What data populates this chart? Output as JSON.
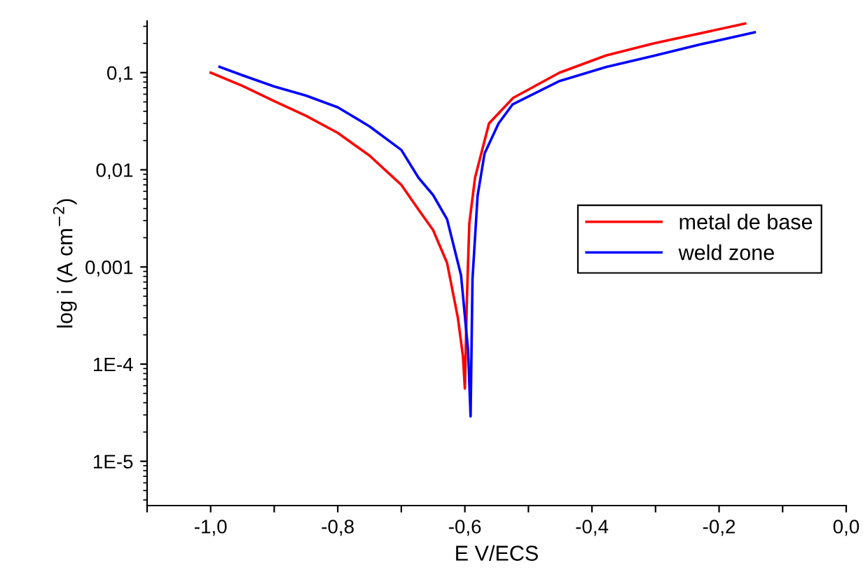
{
  "chart_data": {
    "type": "line",
    "xlabel": "E V/ECS",
    "ylabel": "log i (A cm$^{−2}$)",
    "log": "y",
    "grid": false,
    "legend": "right",
    "line_style": "solid",
    "marker": "none",
    "xlim": [
      -1.1,
      0.0
    ],
    "xticks": [
      {
        "value": -1.1,
        "label": null
      },
      {
        "value": -1.0,
        "label": "-1,0"
      },
      {
        "value": -0.9,
        "label": null
      },
      {
        "value": -0.8,
        "label": "-0,8"
      },
      {
        "value": -0.7,
        "label": null
      },
      {
        "value": -0.6,
        "label": "-0,6"
      },
      {
        "value": -0.5,
        "label": null
      },
      {
        "value": -0.4,
        "label": "-0,4"
      },
      {
        "value": -0.3,
        "label": null
      },
      {
        "value": -0.2,
        "label": "-0,2"
      },
      {
        "value": -0.1,
        "label": null
      },
      {
        "value": 0.0,
        "label": "0,0"
      }
    ],
    "ylim": [
      3.5e-06,
      0.34
    ],
    "yticks": [
      {
        "value": 1e-05,
        "label": "1E-5"
      },
      {
        "value": 0.0001,
        "label": "1E-4"
      },
      {
        "value": 0.001,
        "label": "0,001"
      },
      {
        "value": 0.01,
        "label": "0,01"
      },
      {
        "value": 0.1,
        "label": "0,1"
      }
    ],
    "series": [
      {
        "name": "metal de base",
        "color": "#ff0000",
        "x": [
          -1.0,
          -0.95,
          -0.9,
          -0.85,
          -0.8,
          -0.75,
          -0.7,
          -0.673,
          -0.65,
          -0.628,
          -0.611,
          -0.603,
          -0.6,
          -0.597,
          -0.593,
          -0.584,
          -0.562,
          -0.524,
          -0.451,
          -0.378,
          -0.303,
          -0.159
        ],
        "values": [
          0.1,
          0.073,
          0.051,
          0.036,
          0.024,
          0.014,
          0.007,
          0.0039,
          0.0024,
          0.0011,
          0.0003,
          0.00012,
          5.6e-05,
          0.00042,
          0.0028,
          0.0083,
          0.03,
          0.055,
          0.1,
          0.15,
          0.2,
          0.32
        ]
      },
      {
        "name": "weld zone",
        "color": "#0000ff",
        "x": [
          -0.986,
          -0.95,
          -0.9,
          -0.85,
          -0.8,
          -0.75,
          -0.7,
          -0.673,
          -0.65,
          -0.628,
          -0.606,
          -0.595,
          -0.591,
          -0.588,
          -0.58,
          -0.569,
          -0.547,
          -0.525,
          -0.451,
          -0.378,
          -0.303,
          -0.23,
          -0.144
        ],
        "values": [
          0.115,
          0.094,
          0.072,
          0.058,
          0.044,
          0.028,
          0.016,
          0.0083,
          0.0055,
          0.0031,
          0.00082,
          0.00014,
          2.9e-05,
          0.00075,
          0.0054,
          0.0147,
          0.03,
          0.047,
          0.082,
          0.114,
          0.149,
          0.195,
          0.26
        ]
      }
    ]
  }
}
